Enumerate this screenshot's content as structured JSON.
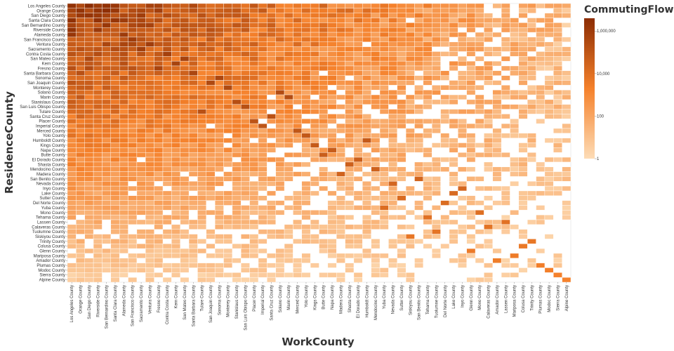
{
  "chart_data": {
    "type": "heatmap",
    "title": "",
    "xlabel": "WorkCounty",
    "ylabel": "ResidenceCounty",
    "color_field": "CommutingFlow",
    "color_scale": "log",
    "color_range": [
      "#fddcb6",
      "#f5812b",
      "#8c2d04"
    ],
    "legend": {
      "title": "CommutingFlow",
      "placement": "top-right",
      "ticks": [
        1,
        100,
        10000,
        1000000
      ],
      "tick_labels": [
        "1",
        "100",
        "10,000",
        "1,000,000"
      ],
      "domain": [
        1,
        4000000
      ]
    },
    "y_categories": [
      "Los Angeles County",
      "Orange County",
      "San Diego County",
      "Santa Clara County",
      "San Bernardino County",
      "Riverside County",
      "Alameda County",
      "San Francisco County",
      "Ventura County",
      "Sacramento County",
      "Contra Costa County",
      "San Mateo County",
      "Kern County",
      "Fresno County",
      "Santa Barbara County",
      "Sonoma County",
      "San Joaquin County",
      "Monterey County",
      "Solano County",
      "Marin County",
      "Stanislaus County",
      "San Luis Obispo County",
      "Tulare County",
      "Santa Cruz County",
      "Placer County",
      "Imperial County",
      "Merced County",
      "Yolo County",
      "Humboldt County",
      "Kings County",
      "Napa County",
      "Butte County",
      "El Dorado County",
      "Shasta County",
      "Mendocino County",
      "Madera County",
      "San Benito County",
      "Nevada County",
      "Inyo County",
      "Lake County",
      "Sutter County",
      "Del Norte County",
      "Yuba County",
      "Mono County",
      "Tehama County",
      "Lassen County",
      "Calaveras County",
      "Tuolumne County",
      "Siskiyou County",
      "Trinity County",
      "Colusa County",
      "Glenn County",
      "Mariposa County",
      "Amador County",
      "Plumas County",
      "Modoc County",
      "Sierra County",
      "Alpine County"
    ],
    "x_categories": [
      "Los Angeles County",
      "Orange County",
      "San Diego County",
      "Riverside County",
      "San Bernardino County",
      "Santa Clara County",
      "Alameda County",
      "San Francisco County",
      "Sacramento County",
      "Ventura County",
      "Fresno County",
      "Contra Costa County",
      "Kern County",
      "San Mateo County",
      "Santa Barbara County",
      "Tulare County",
      "San Joaquin County",
      "Sonoma County",
      "Monterey County",
      "Stanislaus County",
      "San Luis Obispo County",
      "Placer County",
      "Imperial County",
      "Santa Cruz County",
      "Solano County",
      "Marin County",
      "Merced County",
      "Yolo County",
      "Kings County",
      "Butte County",
      "Napa County",
      "Madera County",
      "Shasta County",
      "El Dorado County",
      "Humboldt County",
      "Mendocino County",
      "Yuba County",
      "Nevada County",
      "Sutter County",
      "Siskiyou County",
      "San Benito County",
      "Tehama County",
      "Tuolumne County",
      "Del Norte County",
      "Lake County",
      "Inyo County",
      "Glenn County",
      "Mono County",
      "Calaveras County",
      "Amador County",
      "Lassen County",
      "Mariposa County",
      "Colusa County",
      "Trinity County",
      "Plumas County",
      "Modoc County",
      "Sierra County",
      "Alpine County"
    ],
    "values_note_matrix_rows_follow_y_categories": true,
    "matrix": []
  }
}
